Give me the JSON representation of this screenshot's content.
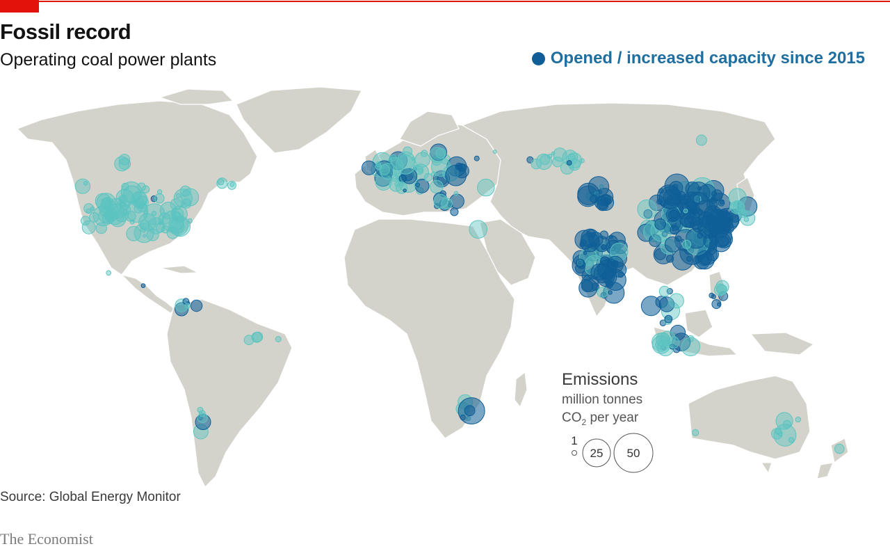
{
  "header": {
    "title": "Fossil record",
    "subtitle": "Operating coal power plants"
  },
  "legend": {
    "label": "Opened / increased capacity since 2015",
    "new_color": "#0f5e97",
    "existing_color": "#5cc4c0"
  },
  "size_key": {
    "title": "Emissions",
    "unit_line1": "million tonnes",
    "unit_co2": "CO",
    "unit_sub": "2",
    "unit_rest": " per year",
    "values": [
      1,
      25,
      50
    ]
  },
  "footer": {
    "source": "Source: Global Energy Monitor",
    "brand": "The Economist"
  },
  "colors": {
    "land": "#d4d3cb",
    "ocean": "#ffffff",
    "accent_red": "#e3120b"
  }
}
